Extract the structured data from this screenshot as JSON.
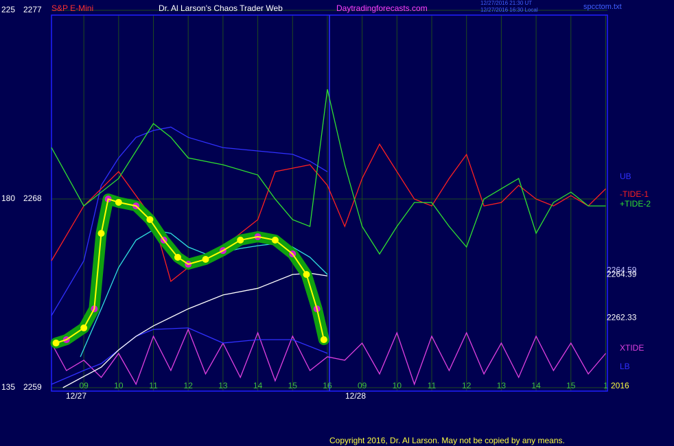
{
  "header": {
    "symbol": "S&P E-Mini",
    "title": "Dr. Al Larson's Chaos Trader Web",
    "site": "Daytradingforecasts.com",
    "timestamps": [
      "12/27/2016 21:30 UT",
      "12/27/2016 16:30 Local"
    ],
    "file": "spcctom.txt"
  },
  "chart_data": {
    "type": "line",
    "xlim": [
      -0.93,
      15.05
    ],
    "xticks": [
      {
        "value": 0,
        "label": "09"
      },
      {
        "value": 1,
        "label": "10"
      },
      {
        "value": 2,
        "label": "11"
      },
      {
        "value": 3,
        "label": "12"
      },
      {
        "value": 4,
        "label": "13"
      },
      {
        "value": 5,
        "label": "14"
      },
      {
        "value": 6,
        "label": "15"
      },
      {
        "value": 7,
        "label": "16"
      },
      {
        "value": 8,
        "label": "09"
      },
      {
        "value": 9,
        "label": "10"
      },
      {
        "value": 10,
        "label": "11"
      },
      {
        "value": 11,
        "label": "12"
      },
      {
        "value": 12,
        "label": "13"
      },
      {
        "value": 13,
        "label": "14"
      },
      {
        "value": 14,
        "label": "15"
      },
      {
        "value": 15,
        "label": "1"
      }
    ],
    "ylim": [
      2259,
      2277
    ],
    "yticks": [
      2259,
      2268,
      2277
    ],
    "y2lim": [
      135,
      225
    ],
    "y2ticks": [
      135,
      180,
      225
    ],
    "grid": true,
    "date_labels": [
      "12/27",
      "12/28"
    ],
    "year": "2016",
    "price_labels": [
      2264.59,
      2264.39,
      2262.33
    ],
    "series": [
      {
        "name": "UB",
        "color": "#3030ff",
        "x": [
          -0.93,
          0,
          0.5,
          1,
          1.5,
          2,
          2.5,
          3,
          4,
          5,
          6,
          6.5,
          7
        ],
        "values": [
          2262.44,
          2265.05,
          2268.65,
          2269.96,
          2270.94,
          2271.27,
          2271.43,
          2270.94,
          2270.45,
          2270.29,
          2270.13,
          2269.8,
          2269.3
        ]
      },
      {
        "name": "-TIDE-1",
        "color": "#ff2020",
        "axis": "y2",
        "x": [
          -0.93,
          0,
          1,
          2,
          2.5,
          3,
          4,
          5,
          5.5,
          6,
          6.5,
          7,
          7.5,
          8,
          8.5,
          9,
          9.5,
          10,
          10.5,
          11,
          11.5,
          12,
          12.5,
          13,
          13.5,
          14,
          14.5,
          15
        ],
        "values": [
          165.27,
          178.35,
          186.53,
          175.08,
          160.36,
          163.63,
          168.54,
          175.08,
          186.53,
          187.35,
          188.17,
          183.26,
          173.45,
          184.9,
          193.08,
          186.53,
          179.99,
          178.35,
          184.9,
          190.62,
          178.35,
          179.17,
          183.26,
          179.99,
          178.35,
          180.81,
          178.35,
          182.44
        ]
      },
      {
        "name": "+TIDE-2",
        "color": "#30e030",
        "axis": "y2",
        "x": [
          -0.93,
          0,
          1,
          2,
          2.5,
          3,
          4,
          5,
          5.5,
          6,
          6.5,
          7,
          7.5,
          8,
          8.5,
          9,
          9.5,
          10,
          10.5,
          11,
          11.5,
          12,
          12.5,
          13,
          13.5,
          14,
          14.5,
          15
        ],
        "values": [
          192.26,
          178.35,
          184.9,
          197.99,
          194.72,
          189.81,
          188.17,
          185.72,
          179.99,
          175.08,
          173.45,
          206.17,
          188.17,
          173.45,
          166.9,
          173.45,
          179.17,
          179.17,
          173.45,
          168.54,
          179.99,
          182.44,
          184.9,
          171.81,
          179.17,
          181.63,
          178.35,
          178.35
        ]
      },
      {
        "name": "XTIDE",
        "color": "#e040e0",
        "axis": "y2",
        "x": [
          -0.93,
          -0.5,
          0,
          0.5,
          1,
          1.5,
          2,
          2.5,
          3,
          3.5,
          4,
          4.5,
          5,
          5.5,
          6,
          6.5,
          7,
          7.5,
          8,
          8.5,
          9,
          9.5,
          10,
          10.5,
          11,
          11.5,
          12,
          12.5,
          13,
          13.5,
          14,
          14.5,
          15
        ],
        "values": [
          145.63,
          139.09,
          141.54,
          137.45,
          143.18,
          135.82,
          147.27,
          139.09,
          148.91,
          138.27,
          145.63,
          137.45,
          148.09,
          136.64,
          147.27,
          139.09,
          142.36,
          141.54,
          145.63,
          138.27,
          148.09,
          135.82,
          147.27,
          139.09,
          148.09,
          138.27,
          145.63,
          137.45,
          147.27,
          139.09,
          145.63,
          138.27,
          143.18
        ]
      },
      {
        "name": "LB",
        "color": "#3030ff",
        "x": [
          -0.93,
          0,
          0.5,
          1,
          1.5,
          2,
          3,
          4,
          5,
          6,
          7
        ],
        "values": [
          2259.16,
          2259.82,
          2260.15,
          2260.8,
          2261.45,
          2261.78,
          2261.85,
          2261.13,
          2261.29,
          2261.29,
          2260.64
        ]
      },
      {
        "color": "#ffffff",
        "x": [
          -0.6,
          0.5,
          1,
          1.5,
          2,
          3,
          4,
          5,
          6,
          6.5,
          7
        ],
        "values": [
          2259.0,
          2259.98,
          2260.8,
          2261.45,
          2261.95,
          2262.76,
          2263.42,
          2263.74,
          2264.4,
          2264.46,
          2264.33
        ]
      },
      {
        "color": "#30e0e0",
        "x": [
          -0.1,
          0.5,
          1,
          1.5,
          2,
          2.5,
          3,
          3.5,
          4,
          4.5,
          5,
          5.5,
          6,
          6.5,
          7
        ],
        "values": [
          2260.47,
          2262.76,
          2264.73,
          2266.04,
          2266.53,
          2266.36,
          2265.71,
          2265.38,
          2265.45,
          2265.64,
          2265.77,
          2265.87,
          2265.71,
          2265.22,
          2264.4
        ]
      },
      {
        "color": "#ffff00",
        "halo": "#10a010",
        "x": [
          -0.8,
          -0.5,
          0,
          0.3,
          0.5,
          0.7,
          1,
          1.5,
          1.9,
          2.3,
          2.7,
          3,
          3.5,
          4,
          4.5,
          5,
          5.5,
          6,
          6.4,
          6.7,
          6.9
        ],
        "values": [
          2261.13,
          2261.29,
          2261.85,
          2262.76,
          2266.36,
          2268.0,
          2267.84,
          2267.67,
          2267.02,
          2266.04,
          2265.22,
          2264.89,
          2265.12,
          2265.54,
          2266.04,
          2266.2,
          2266.04,
          2265.38,
          2264.4,
          2262.76,
          2261.29
        ]
      }
    ]
  },
  "footer": "Copyright 2016, Dr. Al Larson. May not be copied by any means."
}
